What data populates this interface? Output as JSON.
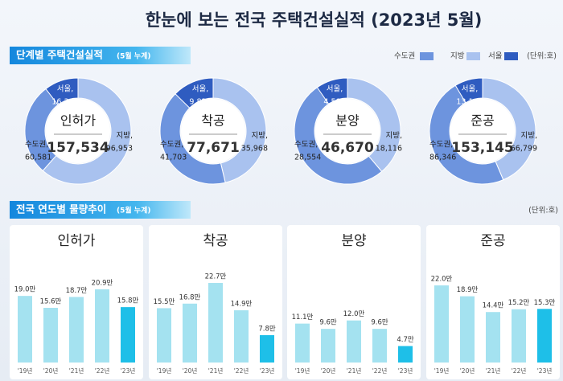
{
  "header": {
    "title": "한눈에 보는 전국 주택건설실적 (2023년 5월)"
  },
  "section1": {
    "title": "단계별 주택건설실적",
    "note": "(5월 누계)",
    "unit": "(단위:호)",
    "legend": [
      {
        "name": "수도권",
        "color": "#6d94de"
      },
      {
        "name": "지방",
        "color": "#a9c2ef"
      },
      {
        "name": "서울",
        "color": "#2f5cc0"
      }
    ]
  },
  "section2": {
    "title": "전국 연도별 물량추이",
    "note": "(5월 누계)",
    "unit": "(단위:호)"
  },
  "chart_data": [
    {
      "type": "donut",
      "title": "인허가",
      "total": "157,534",
      "categories": [
        "수도권,",
        "지방,",
        "서울,"
      ],
      "values": [
        60581,
        96953,
        16361
      ],
      "value_labels": [
        "60,581",
        "96,953",
        "16,361"
      ],
      "colors": [
        "#6d94de",
        "#a9c2ef",
        "#2f5cc0"
      ]
    },
    {
      "type": "donut",
      "title": "착공",
      "total": "77,671",
      "categories": [
        "수도권,",
        "지방,",
        "서울,"
      ],
      "values": [
        41703,
        35968,
        9823
      ],
      "value_labels": [
        "41,703",
        "35,968",
        "9,823"
      ],
      "colors": [
        "#6d94de",
        "#a9c2ef",
        "#2f5cc0"
      ]
    },
    {
      "type": "donut",
      "title": "분양",
      "total": "46,670",
      "categories": [
        "수도권,",
        "지방,",
        "서울,"
      ],
      "values": [
        28554,
        18116,
        4502
      ],
      "value_labels": [
        "28,554",
        "18,116",
        "4,502"
      ],
      "colors": [
        "#6d94de",
        "#a9c2ef",
        "#2f5cc0"
      ]
    },
    {
      "type": "donut",
      "title": "준공",
      "total": "153,145",
      "categories": [
        "수도권,",
        "지방,",
        "서울,"
      ],
      "values": [
        86346,
        66799,
        13107
      ],
      "value_labels": [
        "86,346",
        "66,799",
        "13,107"
      ],
      "colors": [
        "#6d94de",
        "#a9c2ef",
        "#2f5cc0"
      ]
    },
    {
      "type": "bar",
      "title": "인허가",
      "categories": [
        "'19년",
        "'20년",
        "'21년",
        "'22년",
        "'23년"
      ],
      "values": [
        19.0,
        15.6,
        18.7,
        20.9,
        15.8
      ],
      "value_labels": [
        "19.0만",
        "15.6만",
        "18.7만",
        "20.9만",
        "15.8만"
      ],
      "colors": [
        "#a4e2f0",
        "#a4e2f0",
        "#a4e2f0",
        "#a4e2f0",
        "#1ebfe8"
      ],
      "ylim": [
        0,
        25
      ]
    },
    {
      "type": "bar",
      "title": "착공",
      "categories": [
        "'19년",
        "'20년",
        "'21년",
        "'22년",
        "'23년"
      ],
      "values": [
        15.5,
        16.8,
        22.7,
        14.9,
        7.8
      ],
      "value_labels": [
        "15.5만",
        "16.8만",
        "22.7만",
        "14.9만",
        "7.8만"
      ],
      "colors": [
        "#a4e2f0",
        "#a4e2f0",
        "#a4e2f0",
        "#a4e2f0",
        "#1ebfe8"
      ],
      "ylim": [
        0,
        25
      ]
    },
    {
      "type": "bar",
      "title": "분양",
      "categories": [
        "'19년",
        "'20년",
        "'21년",
        "'22년",
        "'23년"
      ],
      "values": [
        11.1,
        9.6,
        12.0,
        9.6,
        4.7
      ],
      "value_labels": [
        "11.1만",
        "9.6만",
        "12.0만",
        "9.6만",
        "4.7만"
      ],
      "colors": [
        "#a4e2f0",
        "#a4e2f0",
        "#a4e2f0",
        "#a4e2f0",
        "#1ebfe8"
      ],
      "ylim": [
        0,
        25
      ]
    },
    {
      "type": "bar",
      "title": "준공",
      "categories": [
        "'19년",
        "'20년",
        "'21년",
        "'22년",
        "'23년"
      ],
      "values": [
        22.0,
        18.9,
        14.4,
        15.2,
        15.3
      ],
      "value_labels": [
        "22.0만",
        "18.9만",
        "14.4만",
        "15.2만",
        "15.3만"
      ],
      "colors": [
        "#a4e2f0",
        "#a4e2f0",
        "#a4e2f0",
        "#a4e2f0",
        "#1ebfe8"
      ],
      "ylim": [
        0,
        25
      ]
    }
  ]
}
